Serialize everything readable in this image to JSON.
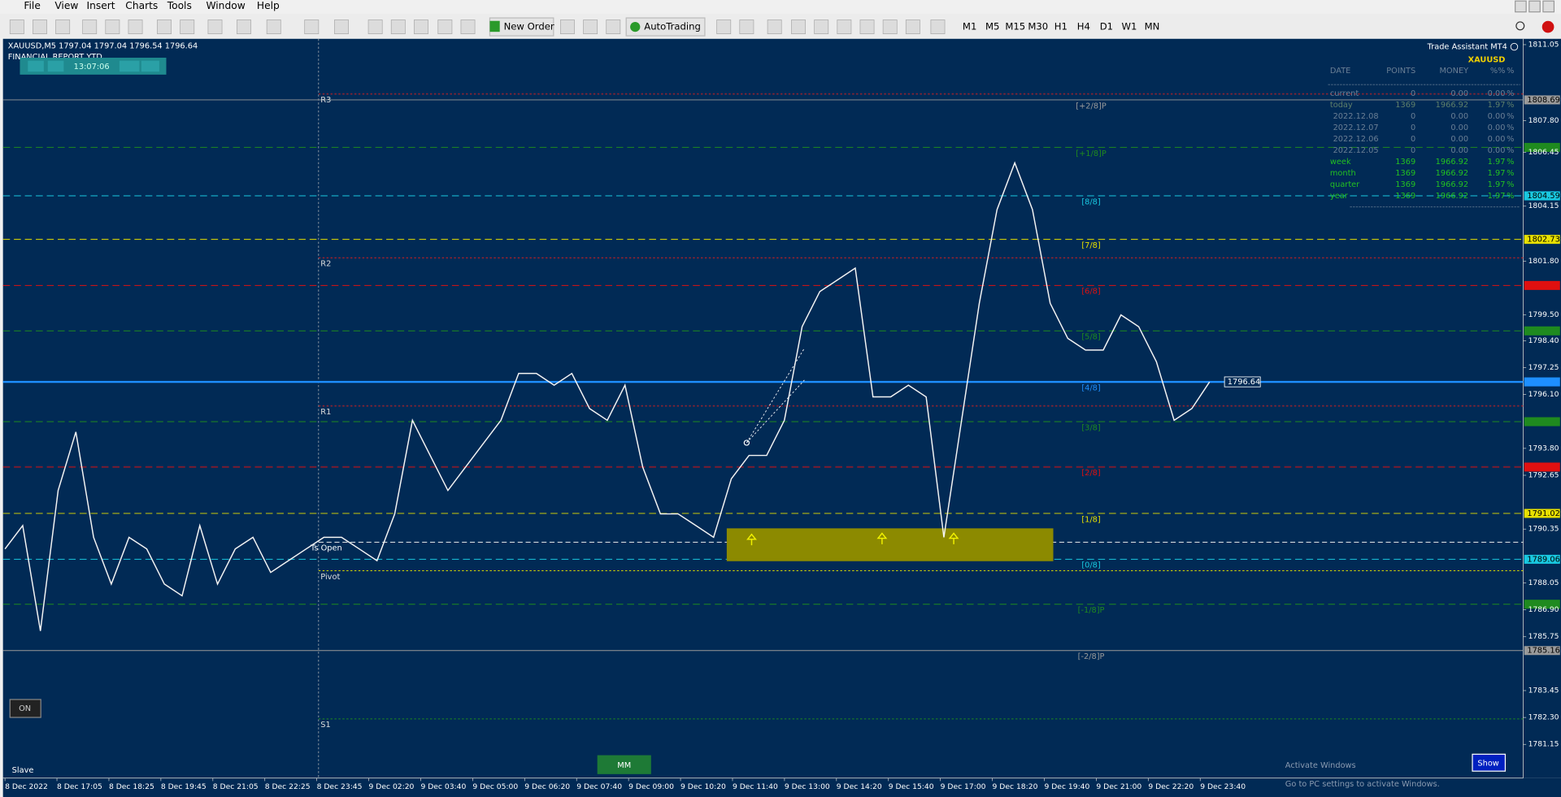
{
  "menu": [
    "File",
    "View",
    "Insert",
    "Charts",
    "Tools",
    "Window",
    "Help"
  ],
  "toolbar": {
    "new_order": "New Order",
    "autotrading": "AutoTrading",
    "timeframes": [
      "M1",
      "M5",
      "M15",
      "M30",
      "H1",
      "H4",
      "D1",
      "W1",
      "MN"
    ]
  },
  "chart": {
    "header": "XAUUSD,M5  1797.04 1797.04 1796.54 1796.64",
    "report": "FINANCIAL REPORT YTD",
    "clock": "13:07:06",
    "ylim": [
      1779.71,
      1811.3
    ],
    "price_ticks": [
      {
        "value": 1811.05,
        "label": "1811.05"
      },
      {
        "value": 1807.8,
        "label": "1807.80"
      },
      {
        "value": 1806.45,
        "label": "1806.45"
      },
      {
        "value": 1804.15,
        "label": "1804.15"
      },
      {
        "value": 1801.8,
        "label": "1801.80"
      },
      {
        "value": 1799.5,
        "label": "1799.50"
      },
      {
        "value": 1798.4,
        "label": "1798.40"
      },
      {
        "value": 1797.25,
        "label": "1797.25"
      },
      {
        "value": 1796.1,
        "label": "1796.10"
      },
      {
        "value": 1793.8,
        "label": "1793.80"
      },
      {
        "value": 1792.65,
        "label": "1792.65"
      },
      {
        "value": 1790.35,
        "label": "1790.35"
      },
      {
        "value": 1788.05,
        "label": "1788.05"
      },
      {
        "value": 1786.9,
        "label": "1786.90"
      },
      {
        "value": 1785.75,
        "label": "1785.75"
      },
      {
        "value": 1783.45,
        "label": "1783.45"
      },
      {
        "value": 1782.3,
        "label": "1782.30"
      },
      {
        "value": 1781.15,
        "label": "1781.15"
      }
    ],
    "time_labels": [
      "8 Dec 2022",
      "8 Dec 17:05",
      "8 Dec 18:25",
      "8 Dec 19:45",
      "8 Dec 21:05",
      "8 Dec 22:25",
      "8 Dec 23:45",
      "9 Dec 02:20",
      "9 Dec 03:40",
      "9 Dec 05:00",
      "9 Dec 06:20",
      "9 Dec 07:40",
      "9 Dec 09:00",
      "9 Dec 10:20",
      "9 Dec 11:40",
      "9 Dec 13:00",
      "9 Dec 14:20",
      "9 Dec 15:40",
      "9 Dec 17:00",
      "9 Dec 18:20",
      "9 Dec 19:40",
      "9 Dec 21:00",
      "9 Dec 22:20",
      "9 Dec 23:40"
    ],
    "levels": [
      {
        "price": 1808.69,
        "color": "#9a9a9a",
        "style": "solid",
        "tag": "[+2/8]P",
        "axis_label": "1808.69"
      },
      {
        "price": 1806.66,
        "color": "#1f8a1f",
        "style": "dash",
        "tag": "[+1/8]P"
      },
      {
        "price": 1804.59,
        "color": "#19c8e0",
        "style": "dash",
        "tag": "[8/8]",
        "axis_label": "1804.59"
      },
      {
        "price": 1802.73,
        "color": "#e8e000",
        "style": "dash",
        "tag": "[7/8]",
        "axis_label": "1802.73"
      },
      {
        "price": 1800.76,
        "color": "#e01010",
        "style": "dash",
        "tag": "[6/8]"
      },
      {
        "price": 1798.82,
        "color": "#1f8a1f",
        "style": "dash",
        "tag": "[5/8]"
      },
      {
        "price": 1796.64,
        "color": "#1e8fff",
        "style": "thick",
        "tag": "[4/8]"
      },
      {
        "price": 1794.94,
        "color": "#1f8a1f",
        "style": "dash",
        "tag": "[3/8]"
      },
      {
        "price": 1793.0,
        "color": "#e01010",
        "style": "dash",
        "tag": "[2/8]"
      },
      {
        "price": 1791.02,
        "color": "#e8e000",
        "style": "dash",
        "tag": "[1/8]",
        "axis_label": "1791.02"
      },
      {
        "price": 1789.06,
        "color": "#19c8e0",
        "style": "dash",
        "tag": "[0/8]",
        "axis_label": "1789.06"
      },
      {
        "price": 1787.14,
        "color": "#1f8a1f",
        "style": "dash",
        "tag": "[-1/8]P"
      },
      {
        "price": 1785.16,
        "color": "#9a9a9a",
        "style": "solid",
        "tag": "[-2/8]P",
        "axis_label": "1785.16"
      }
    ],
    "pivots": [
      {
        "name": "R3",
        "price": 1808.94,
        "color": "#d02020"
      },
      {
        "name": "R2",
        "price": 1801.94,
        "color": "#d02020"
      },
      {
        "name": "R1",
        "price": 1795.61,
        "color": "#d02020"
      },
      {
        "name": "Pivot",
        "price": 1788.57,
        "color": "#d8d800"
      },
      {
        "name": "S1",
        "price": 1782.24,
        "color": "#1f8a1f"
      }
    ],
    "ts_open": {
      "name": "Ts Open",
      "price": 1789.79
    },
    "current_price": {
      "value": 1796.64,
      "label": "1796.64"
    },
    "prices": [
      1789.5,
      1790.5,
      1786,
      1792,
      1794.5,
      1790,
      1788,
      1790,
      1789.5,
      1788,
      1787.5,
      1790.5,
      1788,
      1789.5,
      1790,
      1788.5,
      1789,
      1789.5,
      1790,
      1790,
      1789.5,
      1789,
      1791,
      1795,
      1793.5,
      1792,
      1793,
      1794,
      1795,
      1797,
      1797,
      1796.5,
      1797,
      1795.5,
      1795,
      1796.5,
      1793,
      1791,
      1791,
      1790.5,
      1790,
      1792.5,
      1793.5,
      1793.5,
      1795,
      1799,
      1800.5,
      1801,
      1801.5,
      1796,
      1796,
      1796.5,
      1796,
      1790,
      1795,
      1800,
      1804,
      1806,
      1804,
      1800,
      1798.5,
      1798,
      1798,
      1799.5,
      1799,
      1797.5,
      1795,
      1795.5,
      1796.64
    ],
    "on_button": "ON",
    "slave": "Slave",
    "mm_button": "MM",
    "show_button": "Show"
  },
  "trade_assistant": {
    "title": "Trade Assistant MT4",
    "symbol": "XAUUSD",
    "columns": [
      "DATE",
      "POINTS",
      "MONEY",
      "%%",
      "%"
    ],
    "rows": [
      [
        "current",
        "0",
        "0.00",
        "0.00",
        "%"
      ],
      [
        "today",
        "1369",
        "1966.92",
        "1.97",
        "%"
      ],
      [
        "2022.12.08",
        "0",
        "0.00",
        "0.00",
        "%"
      ],
      [
        "2022.12.07",
        "0",
        "0.00",
        "0.00",
        "%"
      ],
      [
        "2022.12.06",
        "0",
        "0.00",
        "0.00",
        "%"
      ],
      [
        "2022.12.05",
        "0",
        "0.00",
        "0.00",
        "%"
      ],
      [
        "week",
        "1369",
        "1966.92",
        "1.97",
        "%"
      ],
      [
        "month",
        "1369",
        "1966.92",
        "1.97",
        "%"
      ],
      [
        "quarter",
        "1369",
        "1966.92",
        "1.97",
        "%"
      ],
      [
        "year",
        "1369",
        "1966.92",
        "1.97",
        "%"
      ]
    ]
  },
  "watermark": {
    "title": "Activate Windows",
    "text": "Go to PC settings to activate Windows."
  }
}
